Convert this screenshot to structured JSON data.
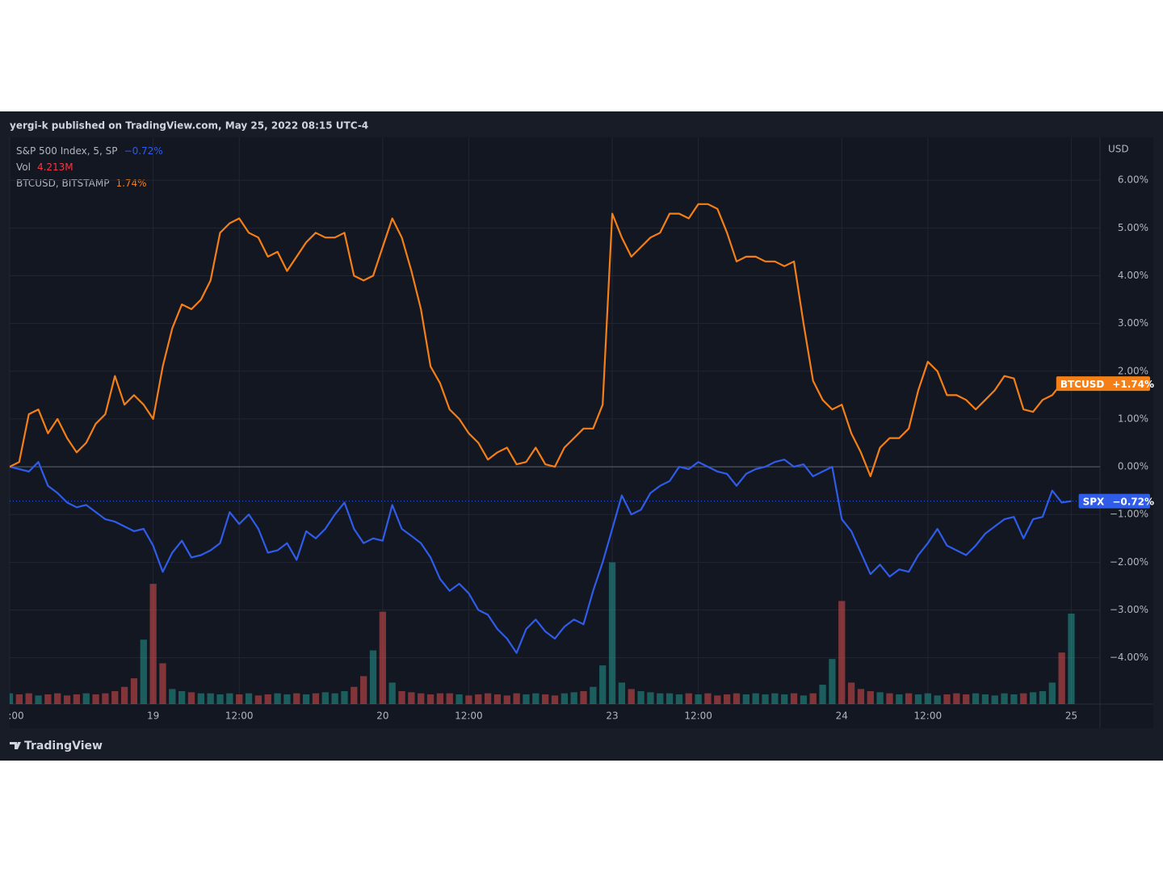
{
  "header": "yergi-k published on TradingView.com, May 25, 2022 08:15 UTC-4",
  "footer": "TradingView",
  "chart_data": {
    "type": "line",
    "y_axis_label": "USD",
    "x": [
      0,
      2,
      4,
      6,
      8,
      10,
      12,
      14,
      16,
      18,
      20,
      22,
      24,
      26,
      28,
      30,
      32,
      34,
      36,
      38,
      40,
      42,
      44,
      46,
      48,
      50,
      52,
      54,
      56,
      58,
      60,
      62,
      64,
      66,
      68,
      70,
      72,
      74,
      76,
      78,
      80,
      82,
      84,
      86,
      88,
      90,
      92,
      94,
      96,
      98,
      100,
      102,
      104,
      106,
      108,
      110,
      112,
      114,
      116,
      118,
      120,
      122,
      124,
      126,
      128,
      130,
      132,
      134,
      136,
      138,
      140,
      142,
      144,
      146,
      148,
      150,
      152,
      154,
      156,
      158,
      160,
      162,
      164,
      166,
      168,
      170,
      172,
      174,
      176,
      178,
      180,
      182,
      184,
      186,
      188,
      190,
      192,
      194,
      196,
      198,
      200,
      202,
      204,
      206,
      208,
      210,
      212,
      214,
      216,
      218,
      220,
      222
    ],
    "xlim": [
      0,
      228
    ],
    "xticks": [
      {
        "value": 0,
        "label": ":00"
      },
      {
        "value": 30,
        "label": "19"
      },
      {
        "value": 48,
        "label": "12:00"
      },
      {
        "value": 78,
        "label": "20"
      },
      {
        "value": 96,
        "label": "12:00"
      },
      {
        "value": 126,
        "label": "23"
      },
      {
        "value": 144,
        "label": "12:00"
      },
      {
        "value": 174,
        "label": "24"
      },
      {
        "value": 192,
        "label": "12:00"
      },
      {
        "value": 222,
        "label": "25"
      }
    ],
    "ylim": [
      -4.97,
      6.9
    ],
    "yticks": [
      {
        "value": 6,
        "label": "6.00%"
      },
      {
        "value": 5,
        "label": "5.00%"
      },
      {
        "value": 4,
        "label": "4.00%"
      },
      {
        "value": 3,
        "label": "3.00%"
      },
      {
        "value": 2,
        "label": "2.00%"
      },
      {
        "value": 1,
        "label": "1.00%"
      },
      {
        "value": 0,
        "label": "0.00%"
      },
      {
        "value": -1,
        "label": "−1.00%"
      },
      {
        "value": -2,
        "label": "−2.00%"
      },
      {
        "value": -3,
        "label": "−3.00%"
      },
      {
        "value": -4,
        "label": "−4.00%"
      }
    ],
    "grid": true,
    "series": [
      {
        "name": "S&P 500 Index, 5, SP",
        "tag": "SPX",
        "color": "#2f5ce8",
        "legend_value": "−0.72%",
        "last_label": "−0.72%",
        "values": [
          0.0,
          -0.05,
          -0.1,
          0.1,
          -0.4,
          -0.55,
          -0.75,
          -0.85,
          -0.8,
          -0.95,
          -1.1,
          -1.15,
          -1.25,
          -1.35,
          -1.3,
          -1.65,
          -2.2,
          -1.8,
          -1.55,
          -1.9,
          -1.85,
          -1.75,
          -1.6,
          -0.95,
          -1.2,
          -1.0,
          -1.3,
          -1.8,
          -1.75,
          -1.6,
          -1.95,
          -1.35,
          -1.5,
          -1.3,
          -1.0,
          -0.75,
          -1.3,
          -1.6,
          -1.5,
          -1.55,
          -0.8,
          -1.3,
          -1.45,
          -1.6,
          -1.9,
          -2.35,
          -2.6,
          -2.45,
          -2.65,
          -3.0,
          -3.1,
          -3.4,
          -3.6,
          -3.9,
          -3.4,
          -3.2,
          -3.45,
          -3.6,
          -3.35,
          -3.2,
          -3.3,
          -2.6,
          -2.0,
          -1.3,
          -0.6,
          -1.0,
          -0.9,
          -0.55,
          -0.4,
          -0.3,
          0.0,
          -0.05,
          0.1,
          0.0,
          -0.1,
          -0.15,
          -0.4,
          -0.15,
          -0.05,
          0.0,
          0.1,
          0.15,
          0.0,
          0.05,
          -0.2,
          -0.1,
          0.0,
          -1.1,
          -1.35,
          -1.8,
          -2.25,
          -2.05,
          -2.3,
          -2.15,
          -2.2,
          -1.85,
          -1.6,
          -1.3,
          -1.65,
          -1.75,
          -1.85,
          -1.65,
          -1.4,
          -1.25,
          -1.1,
          -1.05,
          -1.5,
          -1.1,
          -1.05,
          -0.5,
          -0.75,
          -0.72
        ]
      },
      {
        "name": "BTCUSD, BITSTAMP",
        "tag": "BTCUSD",
        "color": "#f57f17",
        "legend_value": "1.74%",
        "last_label": "+1.74%",
        "values": [
          0.0,
          0.1,
          1.1,
          1.2,
          0.7,
          1.0,
          0.6,
          0.3,
          0.5,
          0.9,
          1.1,
          1.9,
          1.3,
          1.5,
          1.3,
          1.0,
          2.1,
          2.9,
          3.4,
          3.3,
          3.5,
          3.9,
          4.9,
          5.1,
          5.2,
          4.9,
          4.8,
          4.4,
          4.5,
          4.1,
          4.4,
          4.7,
          4.9,
          4.8,
          4.8,
          4.9,
          4.0,
          3.9,
          4.0,
          4.6,
          5.2,
          4.8,
          4.1,
          3.3,
          2.1,
          1.75,
          1.2,
          1.0,
          0.7,
          0.5,
          0.15,
          0.3,
          0.4,
          0.05,
          0.1,
          0.4,
          0.05,
          0.0,
          0.4,
          0.6,
          0.8,
          0.8,
          1.3,
          5.3,
          4.8,
          4.4,
          4.6,
          4.8,
          4.9,
          5.3,
          5.3,
          5.2,
          5.5,
          5.5,
          5.4,
          4.9,
          4.3,
          4.4,
          4.4,
          4.3,
          4.3,
          4.2,
          4.3,
          3.0,
          1.8,
          1.4,
          1.2,
          1.3,
          0.7,
          0.3,
          -0.2,
          0.4,
          0.6,
          0.6,
          0.8,
          1.6,
          2.2,
          2.0,
          1.5,
          1.5,
          1.4,
          1.2,
          1.4,
          1.6,
          1.9,
          1.85,
          1.2,
          1.15,
          1.4,
          1.5,
          1.75,
          1.74
        ]
      }
    ],
    "volume": {
      "name": "Vol",
      "legend_value": "4.213M",
      "ylim": [
        0,
        26.4
      ],
      "up_color": "#26a69a",
      "down_color": "#ef5350",
      "values": [
        0.5,
        0.45,
        0.5,
        0.4,
        0.45,
        0.5,
        0.4,
        0.45,
        0.5,
        0.45,
        0.5,
        0.6,
        0.8,
        1.2,
        3.0,
        5.6,
        1.9,
        0.7,
        0.6,
        0.55,
        0.5,
        0.5,
        0.45,
        0.5,
        0.45,
        0.5,
        0.4,
        0.45,
        0.5,
        0.45,
        0.5,
        0.45,
        0.5,
        0.55,
        0.5,
        0.6,
        0.8,
        1.3,
        2.5,
        4.3,
        1.0,
        0.6,
        0.55,
        0.5,
        0.45,
        0.5,
        0.5,
        0.45,
        0.4,
        0.45,
        0.5,
        0.45,
        0.4,
        0.5,
        0.45,
        0.5,
        0.45,
        0.4,
        0.5,
        0.55,
        0.6,
        0.8,
        1.8,
        6.6,
        1.0,
        0.7,
        0.6,
        0.55,
        0.5,
        0.5,
        0.45,
        0.5,
        0.45,
        0.5,
        0.4,
        0.45,
        0.5,
        0.45,
        0.5,
        0.45,
        0.5,
        0.45,
        0.5,
        0.4,
        0.5,
        0.9,
        2.1,
        4.8,
        1.0,
        0.7,
        0.6,
        0.55,
        0.5,
        0.45,
        0.5,
        0.45,
        0.5,
        0.4,
        0.45,
        0.5,
        0.45,
        0.5,
        0.45,
        0.4,
        0.5,
        0.45,
        0.5,
        0.55,
        0.6,
        1.0,
        2.4,
        4.213
      ]
    }
  }
}
